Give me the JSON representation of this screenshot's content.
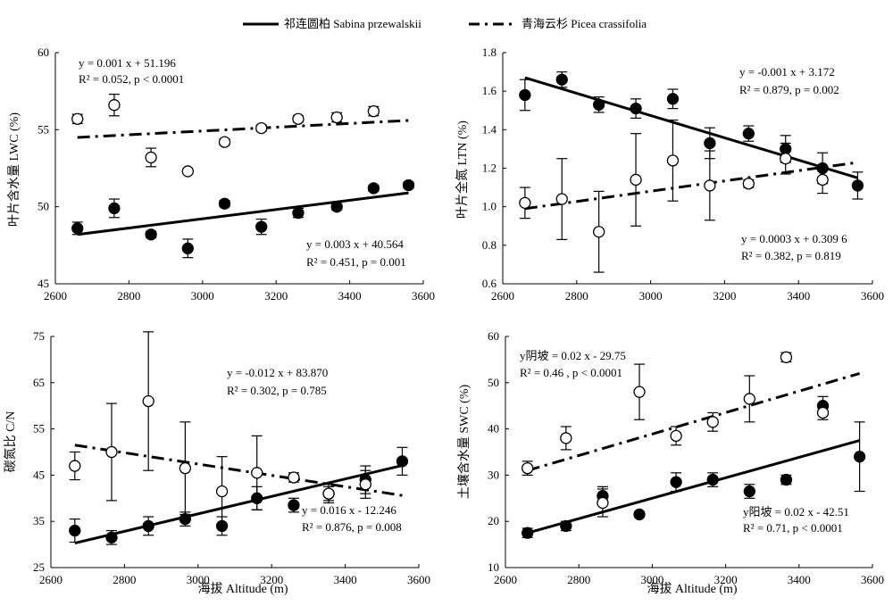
{
  "legend": {
    "series1_label": "祁连圆柏 Sabina przewalskii",
    "series2_label": "青海云杉 Picea crassifolia"
  },
  "chart_data": [
    {
      "type": "scatter",
      "ylabel": "叶片含水量 LWC (%)",
      "xlabel": "",
      "xlim": [
        2600,
        3600
      ],
      "ylim": [
        45,
        60
      ],
      "xticks": [
        "2600",
        "2800",
        "3000",
        "3200",
        "3400",
        "3600"
      ],
      "yticks": [
        "45",
        "50",
        "55",
        "60"
      ],
      "series": [
        {
          "name": "祁连圆柏 Sabina przewalskii",
          "marker": "filled",
          "x": [
            2660,
            2760,
            2860,
            2960,
            3060,
            3160,
            3260,
            3365,
            3465,
            3560
          ],
          "y": [
            48.6,
            49.9,
            48.2,
            47.3,
            50.2,
            48.7,
            49.6,
            50.0,
            51.2,
            51.4
          ],
          "err": [
            0.4,
            0.6,
            0.2,
            0.6,
            0.2,
            0.5,
            0.3,
            0.2,
            0.2,
            0.2
          ]
        },
        {
          "name": "青海云杉 Picea crassifolia",
          "marker": "open",
          "x": [
            2660,
            2760,
            2860,
            2960,
            3060,
            3160,
            3260,
            3365,
            3465
          ],
          "y": [
            55.7,
            56.6,
            53.2,
            52.3,
            54.2,
            55.1,
            55.7,
            55.8,
            56.2
          ],
          "err": [
            0.3,
            0.7,
            0.6,
            0.1,
            0.2,
            0.2,
            0.2,
            0.3,
            0.3
          ]
        }
      ],
      "fits": [
        {
          "series": 0,
          "x": [
            2660,
            3560
          ],
          "y": [
            48.2,
            50.9
          ],
          "style": "solid"
        },
        {
          "series": 1,
          "x": [
            2660,
            3560
          ],
          "y": [
            54.5,
            55.6
          ],
          "style": "dash"
        }
      ],
      "annotations": [
        {
          "line1": "y = 0.001 x + 51.196",
          "line2": "R² = 0.052, p < 0.0001"
        },
        {
          "line1": "y = 0.003 x + 40.564",
          "line2": "R² = 0.451, p = 0.001"
        }
      ]
    },
    {
      "type": "scatter",
      "ylabel": "叶片全氮 LTN (%)",
      "xlabel": "",
      "xlim": [
        2600,
        3600
      ],
      "ylim": [
        0.6,
        1.8
      ],
      "xticks": [
        "2600",
        "2800",
        "3000",
        "3200",
        "3400",
        "3600"
      ],
      "yticks": [
        "0.6",
        "0.8",
        "1.0",
        "1.2",
        "1.4",
        "1.6",
        "1.8"
      ],
      "series": [
        {
          "name": "祁连圆柏 Sabina przewalskii",
          "marker": "filled",
          "x": [
            2660,
            2760,
            2860,
            2960,
            3060,
            3160,
            3265,
            3365,
            3465,
            3560
          ],
          "y": [
            1.58,
            1.66,
            1.53,
            1.51,
            1.56,
            1.33,
            1.38,
            1.3,
            1.2,
            1.11
          ],
          "err": [
            0.08,
            0.04,
            0.04,
            0.05,
            0.05,
            0.08,
            0.04,
            0.07,
            0.08,
            0.07
          ]
        },
        {
          "name": "青海云杉 Picea crassifolia",
          "marker": "open",
          "x": [
            2660,
            2760,
            2860,
            2960,
            3060,
            3160,
            3265,
            3365,
            3465
          ],
          "y": [
            1.02,
            1.04,
            0.87,
            1.14,
            1.24,
            1.11,
            1.12,
            1.25,
            1.14
          ],
          "err": [
            0.08,
            0.21,
            0.21,
            0.24,
            0.21,
            0.18,
            0.02,
            0.08,
            0.07
          ]
        }
      ],
      "fits": [
        {
          "series": 0,
          "x": [
            2660,
            3560
          ],
          "y": [
            1.67,
            1.15
          ],
          "style": "solid"
        },
        {
          "series": 1,
          "x": [
            2660,
            3560
          ],
          "y": [
            0.99,
            1.23
          ],
          "style": "dash"
        }
      ],
      "annotations": [
        {
          "line1": "y = -0.001 x + 3.172",
          "line2": "R² = 0.879, p = 0.002"
        },
        {
          "line1": "y = 0.0003 x + 0.309 6",
          "line2": "R² = 0.382, p = 0.819"
        }
      ]
    },
    {
      "type": "scatter",
      "ylabel": "碳氮比 C/N",
      "xlabel": "海拔 Altitude (m)",
      "xlim": [
        2600,
        3600
      ],
      "ylim": [
        25,
        75
      ],
      "xticks": [
        "2600",
        "2800",
        "3000",
        "3200",
        "3400",
        "3600"
      ],
      "yticks": [
        "25",
        "35",
        "45",
        "55",
        "65",
        "75"
      ],
      "series": [
        {
          "name": "祁连圆柏 Sabina przewalskii",
          "marker": "filled",
          "x": [
            2665,
            2765,
            2865,
            2965,
            3065,
            3160,
            3260,
            3355,
            3455,
            3555
          ],
          "y": [
            33.0,
            31.5,
            34.0,
            35.5,
            34.0,
            40.0,
            38.5,
            41.0,
            44.0,
            48.0
          ],
          "err": [
            2.5,
            1.5,
            2.0,
            1.5,
            2.0,
            2.5,
            1.5,
            2.0,
            3.0,
            3.0
          ]
        },
        {
          "name": "青海云杉 Picea crassifolia",
          "marker": "open",
          "x": [
            2665,
            2765,
            2865,
            2965,
            3065,
            3160,
            3260,
            3355,
            3455
          ],
          "y": [
            47.0,
            50.0,
            61.0,
            46.5,
            41.5,
            45.5,
            44.5,
            41.0,
            43.0
          ],
          "err": [
            3.0,
            10.5,
            15.0,
            10.0,
            7.5,
            8.0,
            1.0,
            1.5,
            3.0
          ]
        }
      ],
      "fits": [
        {
          "series": 0,
          "x": [
            2665,
            3555
          ],
          "y": [
            30.3,
            47.1
          ],
          "style": "solid"
        },
        {
          "series": 1,
          "x": [
            2665,
            3555
          ],
          "y": [
            51.5,
            40.6
          ],
          "style": "dash"
        }
      ],
      "annotations": [
        {
          "line1": "y = -0.012 x + 83.870",
          "line2": "R² = 0.302, p = 0.785"
        },
        {
          "line1": "y = 0.016 x - 12.246",
          "line2": "R² = 0.876, p = 0.008"
        }
      ]
    },
    {
      "type": "scatter",
      "ylabel": "土壤含水量 SWC (%)",
      "xlabel": "海拔 Altitude (m)",
      "xlim": [
        2600,
        3600
      ],
      "ylim": [
        10,
        60
      ],
      "xticks": [
        "2600",
        "2800",
        "3000",
        "3200",
        "3400",
        "3600"
      ],
      "yticks": [
        "10",
        "20",
        "30",
        "40",
        "50",
        "60"
      ],
      "series": [
        {
          "name": "祁连圆柏 Sabina przewalskii",
          "marker": "filled",
          "x": [
            2660,
            2765,
            2865,
            2965,
            3065,
            3165,
            3265,
            3365,
            3465,
            3565
          ],
          "y": [
            17.5,
            19.0,
            25.5,
            21.5,
            28.5,
            29.0,
            26.5,
            29.0,
            45.0,
            34.0
          ],
          "err": [
            1.0,
            1.0,
            2.0,
            0.5,
            2.0,
            1.5,
            1.5,
            1.0,
            2.0,
            7.5
          ]
        },
        {
          "name": "青海云杉 Picea crassifolia",
          "marker": "open",
          "x": [
            2660,
            2765,
            2865,
            2965,
            3065,
            3165,
            3265,
            3365,
            3465
          ],
          "y": [
            31.5,
            38.0,
            24.0,
            48.0,
            38.5,
            41.5,
            46.5,
            55.5,
            43.5
          ],
          "err": [
            1.5,
            2.5,
            3.0,
            6.0,
            2.0,
            2.0,
            5.0,
            1.0,
            1.5
          ]
        }
      ],
      "fits": [
        {
          "series": 0,
          "x": [
            2660,
            3565
          ],
          "y": [
            17.5,
            37.5
          ],
          "style": "solid"
        },
        {
          "series": 1,
          "x": [
            2660,
            3565
          ],
          "y": [
            31.0,
            52.0
          ],
          "style": "dash"
        }
      ],
      "annotations": [
        {
          "line1": "y阴坡 = 0.02 x - 29.75",
          "line2": "R² = 0.46 , p < 0.0001"
        },
        {
          "line1": "y阳坡 = 0.02 x - 42.51",
          "line2": "R² = 0.71, p < 0.0001"
        }
      ]
    }
  ]
}
